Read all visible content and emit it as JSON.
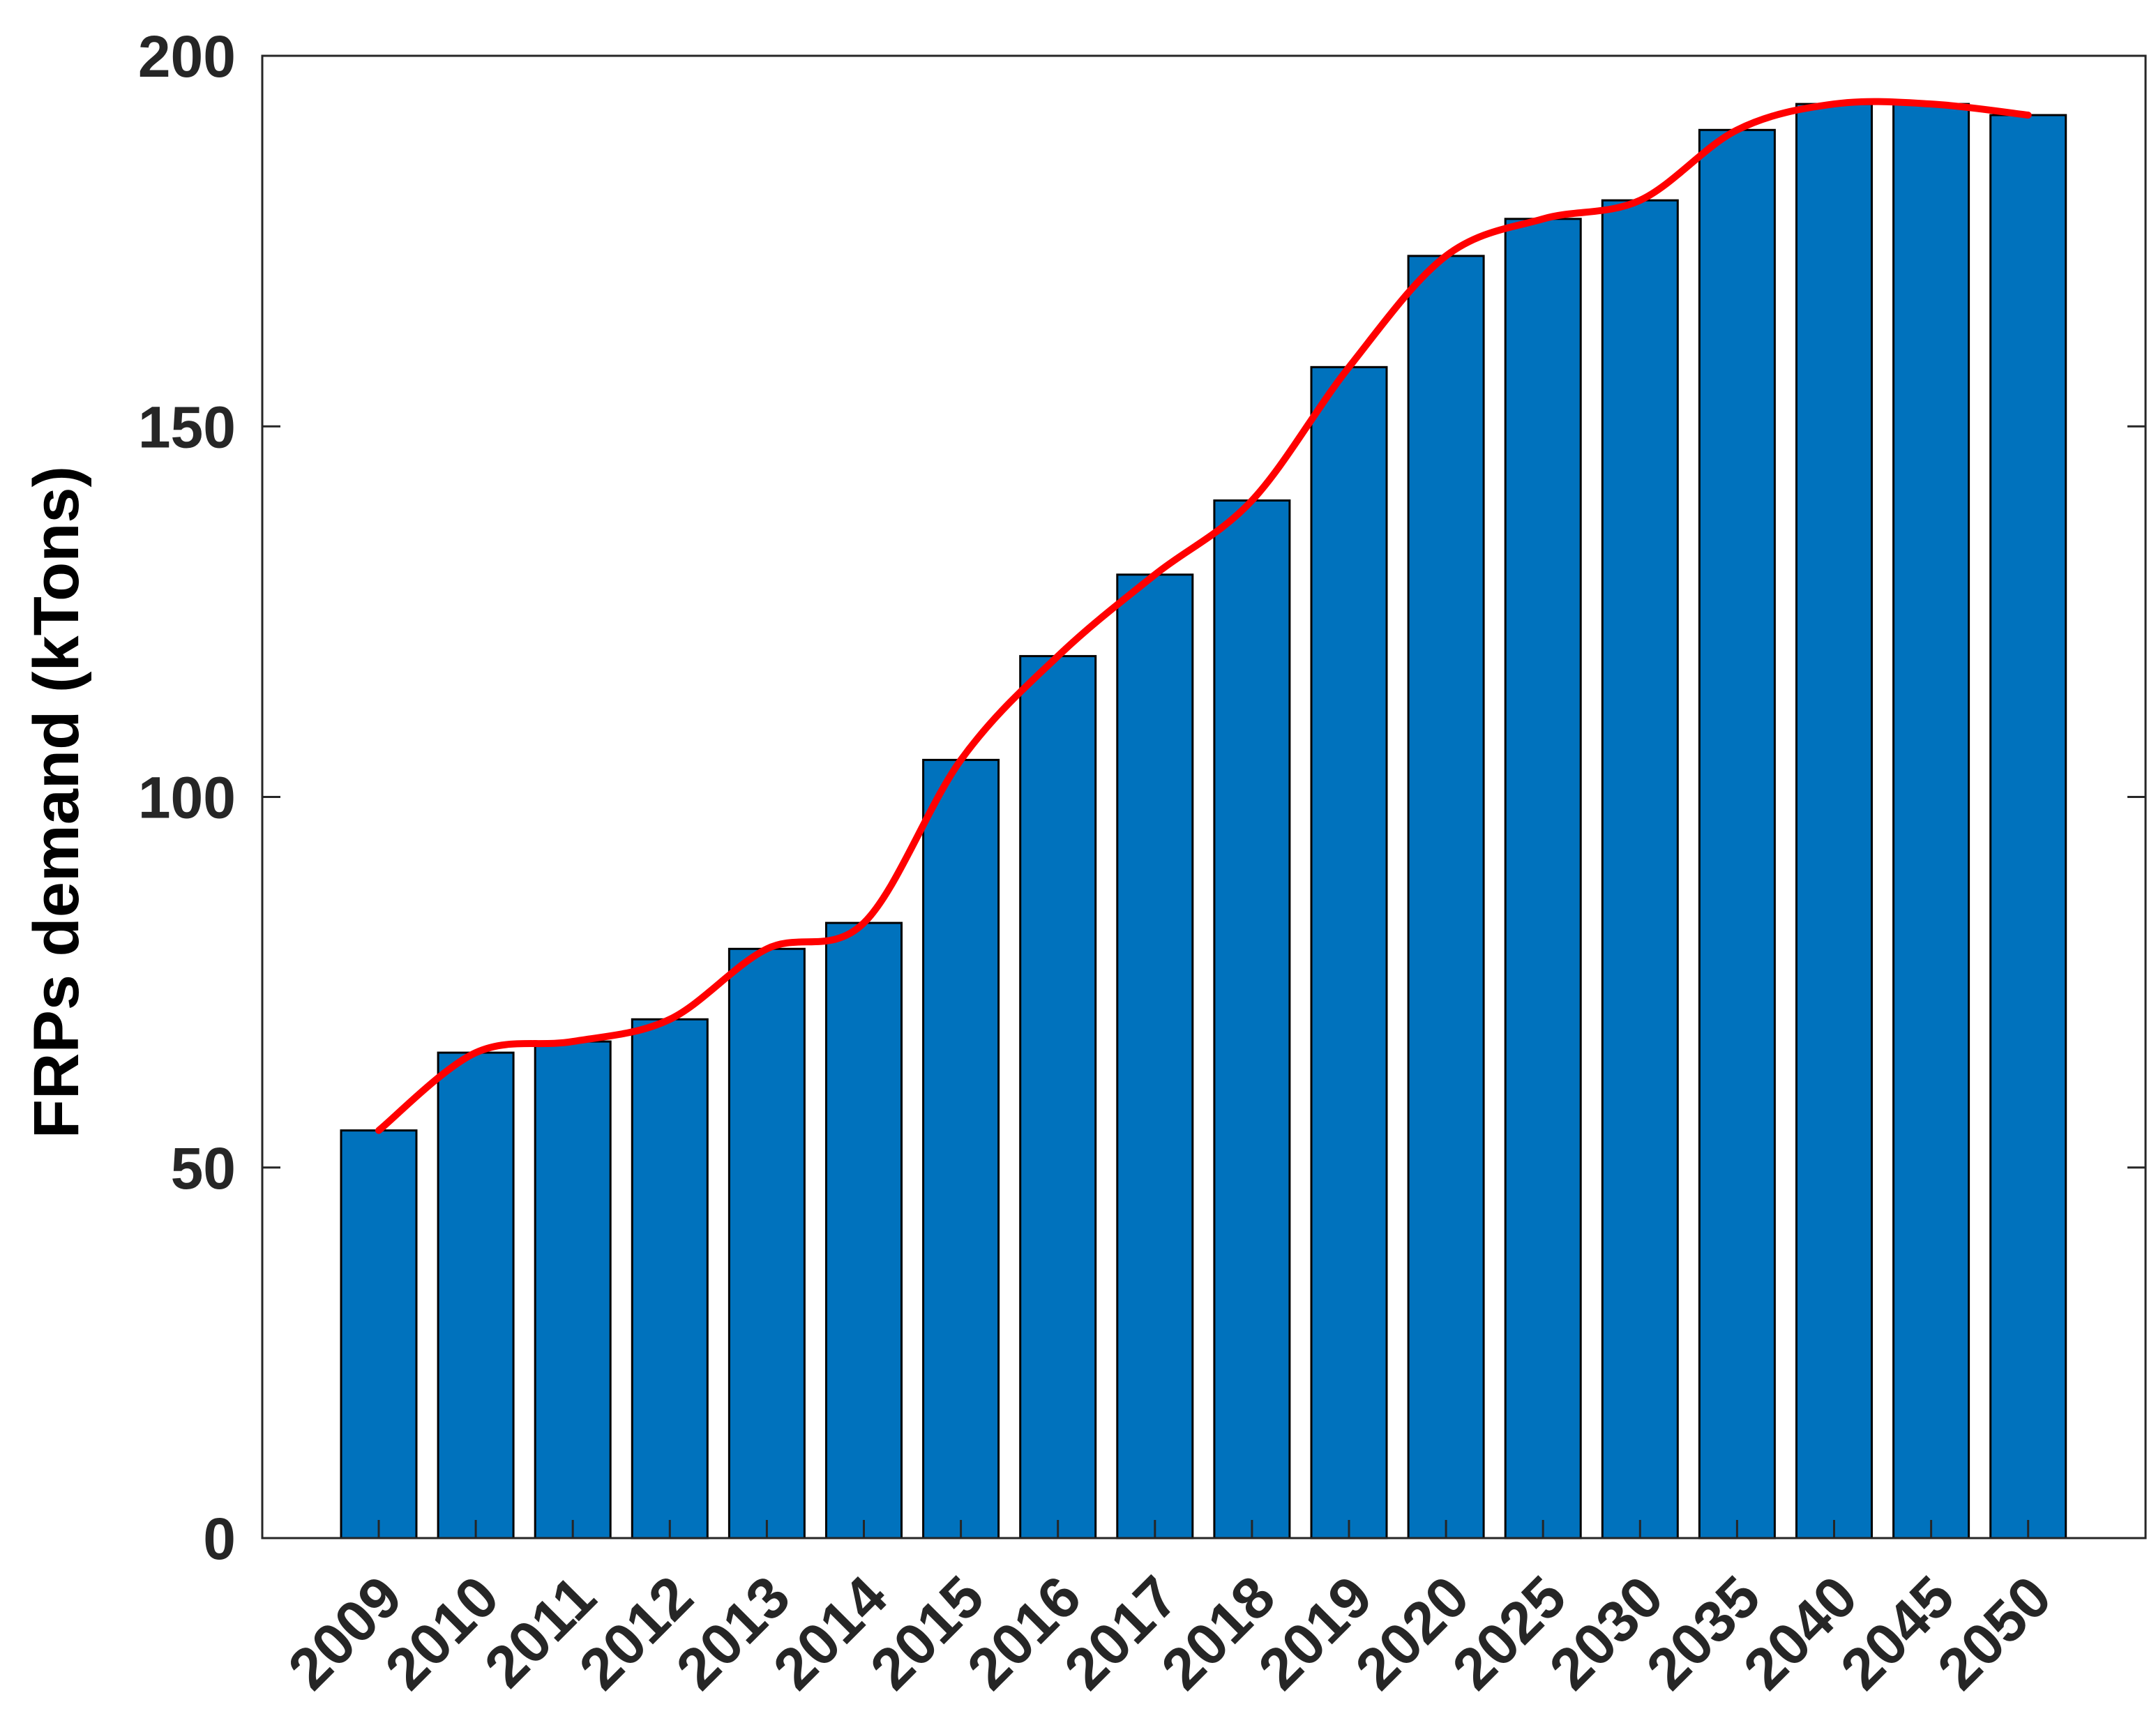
{
  "chart_data": {
    "type": "bar",
    "title": "",
    "xlabel": "",
    "ylabel": "FRPs demand (kTons)",
    "ylim": [
      0,
      200
    ],
    "yticks": [
      0,
      50,
      100,
      150,
      200
    ],
    "grid": false,
    "categories": [
      "2009",
      "2010",
      "2011",
      "2012",
      "2013",
      "2014",
      "2015",
      "2016",
      "2017",
      "2018",
      "2019",
      "2020",
      "2025",
      "2030",
      "2035",
      "2040",
      "2045",
      "2050"
    ],
    "series": [
      {
        "type": "bar",
        "values": [
          55,
          65.5,
          67,
          70,
          79.5,
          83,
          105,
          119,
          130,
          140,
          158,
          173,
          178,
          180.5,
          190,
          193.5,
          193.5,
          192
        ]
      },
      {
        "type": "line",
        "values": [
          55,
          65.5,
          67,
          70,
          79.5,
          83,
          105,
          119,
          130,
          140,
          158,
          173,
          178,
          180.5,
          190,
          193.5,
          193.5,
          192
        ]
      }
    ],
    "colors": {
      "bar_fill": "#0072BD",
      "bar_edge": "#000000",
      "line": "#FF0000",
      "axis": "#262626"
    }
  }
}
